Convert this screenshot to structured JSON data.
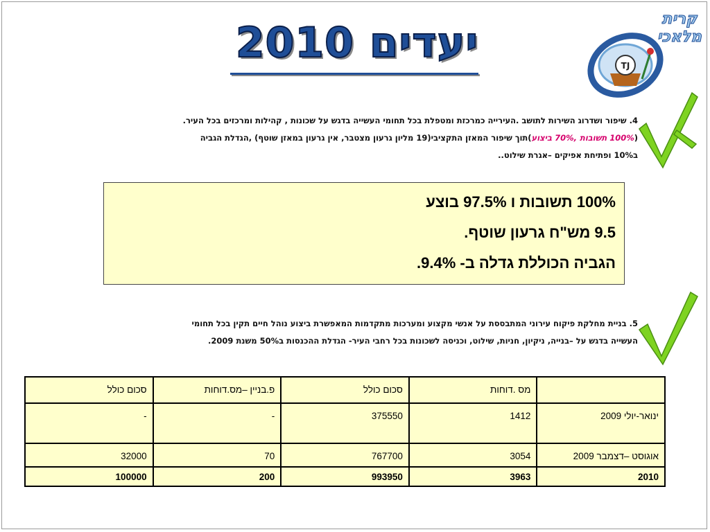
{
  "title": "יעדים 2010",
  "logo": {
    "line1": "קרית",
    "line2": "מלאכי"
  },
  "goal4": {
    "line1": "4. שיפור ושדרוג השירות לתושב .העירייה כמרכזת ומטפלת בכל תחומי העשייה בדגש על שכונות , קהילות ומרכזים בכל העיר.",
    "line2_open": "(",
    "line2_highlight": "100% תשובות ,70% ביצוע",
    "line2_rest": ")תוך שיפור המאזן התקציבי(19 מליון גרעון מצטבר, אין גרעון במאזן שוטף) ,הגדלת הגביה",
    "line3": "ב10% ופתיחת אפיקים –אגרת שילוט.."
  },
  "results": {
    "line1": "100% תשובות ו 97.5% בוצע",
    "line2": "9.5 מש\"ח גרעון שוטף.",
    "line3": "הגביה הכוללת גדלה ב- 9.4%."
  },
  "goal5": {
    "line1": "5. בניית מחלקת פיקוח עירוני המתבססת על אנשי מקצוע  ומערכות מתקדמות המאפשרת ביצוע נוהל חיים תקין בכל תחומי",
    "line2": "העשייה בדגש על –בנייה, ניקיון, חניות, שילוט, וכניסה לשכונות בכל רחבי העיר- הגדלת ההכנסות ב50% משנת 2009."
  },
  "table": {
    "headers": [
      "",
      "מס .דוחות",
      "סכום כולל",
      "פ.בניין –מס.דוחות",
      "סכום כולל"
    ],
    "rows": [
      [
        "ינואר-יולי 2009",
        "1412",
        "375550",
        "-",
        "-"
      ],
      [
        "אוגוסט –דצמבר 2009",
        "3054",
        "767700",
        "70",
        "32000"
      ],
      [
        "2010",
        "3963",
        "993950",
        "200",
        "100000"
      ]
    ]
  },
  "colors": {
    "title": "#1f4e97",
    "check": "#7ed321",
    "highlight_bg": "#ffffcc",
    "magenta": "#d6006c"
  }
}
